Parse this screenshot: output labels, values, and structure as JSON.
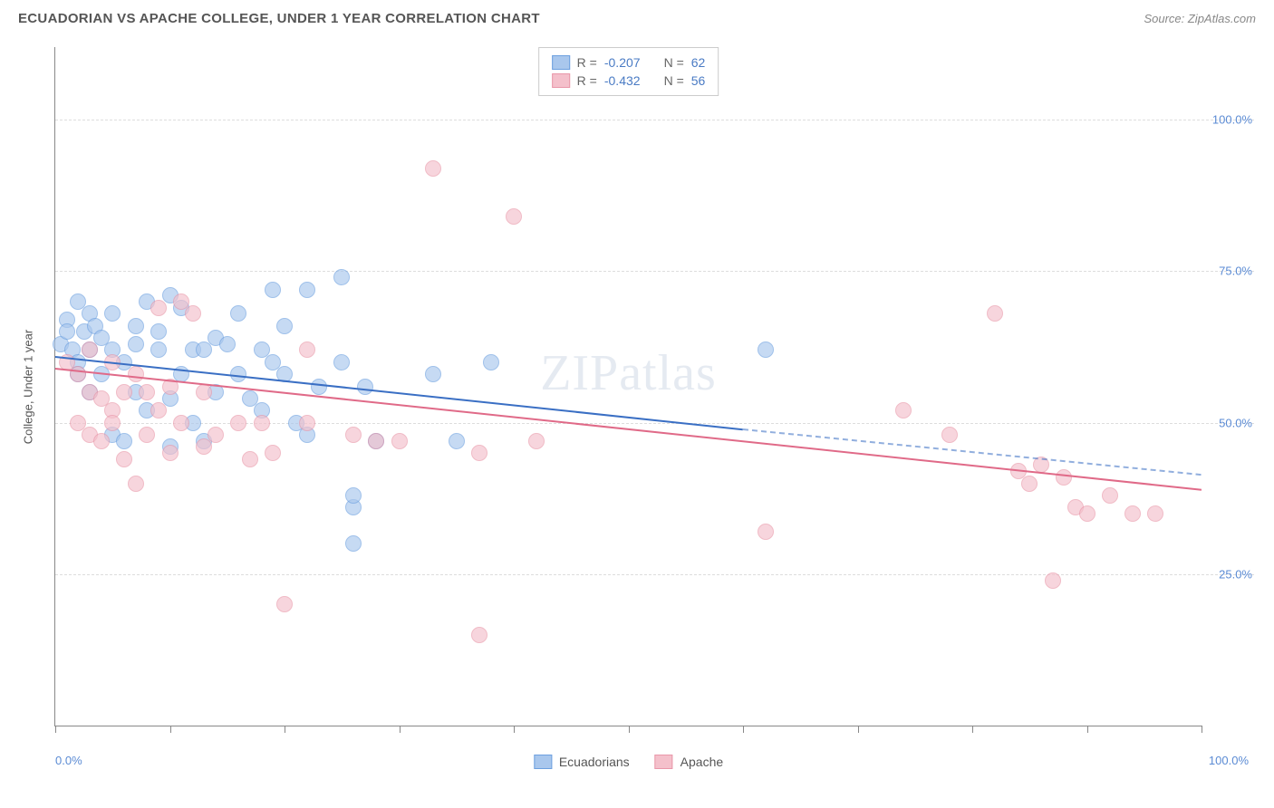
{
  "header": {
    "title": "ECUADORIAN VS APACHE COLLEGE, UNDER 1 YEAR CORRELATION CHART",
    "source_prefix": "Source: ",
    "source": "ZipAtlas.com"
  },
  "chart": {
    "type": "scatter",
    "ylabel": "College, Under 1 year",
    "watermark": "ZIPatlas",
    "xlim": [
      0,
      100
    ],
    "ylim": [
      0,
      112
    ],
    "x_axis": {
      "min_label": "0.0%",
      "max_label": "100.0%",
      "tick_positions_pct": [
        0,
        10,
        20,
        30,
        40,
        50,
        60,
        70,
        80,
        90,
        100
      ]
    },
    "y_gridlines": [
      {
        "value": 25,
        "label": "25.0%"
      },
      {
        "value": 50,
        "label": "50.0%"
      },
      {
        "value": 75,
        "label": "75.0%"
      },
      {
        "value": 100,
        "label": "100.0%"
      }
    ],
    "series": [
      {
        "name": "Ecuadorians",
        "fill": "#a9c7ed",
        "stroke": "#6da0e0",
        "line_color": "#3a6fc4",
        "r": -0.207,
        "n": 62,
        "trend": {
          "x1": 0,
          "y1": 61,
          "x2": 60,
          "y2": 49,
          "dash_x2": 100,
          "dash_y2": 41.5
        },
        "points": [
          [
            0.5,
            63
          ],
          [
            1,
            67
          ],
          [
            1,
            65
          ],
          [
            1.5,
            62
          ],
          [
            2,
            70
          ],
          [
            2,
            60
          ],
          [
            2,
            58
          ],
          [
            2.5,
            65
          ],
          [
            3,
            68
          ],
          [
            3,
            55
          ],
          [
            3,
            62
          ],
          [
            3.5,
            66
          ],
          [
            4,
            58
          ],
          [
            4,
            64
          ],
          [
            5,
            68
          ],
          [
            5,
            62
          ],
          [
            5,
            48
          ],
          [
            6,
            60
          ],
          [
            6,
            47
          ],
          [
            7,
            66
          ],
          [
            7,
            55
          ],
          [
            7,
            63
          ],
          [
            8,
            70
          ],
          [
            8,
            52
          ],
          [
            9,
            62
          ],
          [
            9,
            65
          ],
          [
            10,
            71
          ],
          [
            10,
            54
          ],
          [
            10,
            46
          ],
          [
            11,
            69
          ],
          [
            11,
            58
          ],
          [
            12,
            62
          ],
          [
            12,
            50
          ],
          [
            13,
            62
          ],
          [
            13,
            47
          ],
          [
            14,
            64
          ],
          [
            14,
            55
          ],
          [
            15,
            63
          ],
          [
            16,
            58
          ],
          [
            16,
            68
          ],
          [
            17,
            54
          ],
          [
            18,
            62
          ],
          [
            18,
            52
          ],
          [
            19,
            72
          ],
          [
            19,
            60
          ],
          [
            20,
            58
          ],
          [
            20,
            66
          ],
          [
            21,
            50
          ],
          [
            22,
            72
          ],
          [
            22,
            48
          ],
          [
            23,
            56
          ],
          [
            25,
            74
          ],
          [
            25,
            60
          ],
          [
            26,
            36
          ],
          [
            26,
            38
          ],
          [
            26,
            30
          ],
          [
            27,
            56
          ],
          [
            28,
            47
          ],
          [
            33,
            58
          ],
          [
            35,
            47
          ],
          [
            38,
            60
          ],
          [
            62,
            62
          ]
        ]
      },
      {
        "name": "Apache",
        "fill": "#f4c0cb",
        "stroke": "#e997a9",
        "line_color": "#e06a88",
        "r": -0.432,
        "n": 56,
        "trend": {
          "x1": 0,
          "y1": 59,
          "x2": 100,
          "y2": 39
        },
        "points": [
          [
            1,
            60
          ],
          [
            2,
            58
          ],
          [
            2,
            50
          ],
          [
            3,
            62
          ],
          [
            3,
            55
          ],
          [
            3,
            48
          ],
          [
            4,
            54
          ],
          [
            4,
            47
          ],
          [
            5,
            60
          ],
          [
            5,
            52
          ],
          [
            5,
            50
          ],
          [
            6,
            55
          ],
          [
            6,
            44
          ],
          [
            7,
            58
          ],
          [
            7,
            40
          ],
          [
            8,
            55
          ],
          [
            8,
            48
          ],
          [
            9,
            69
          ],
          [
            9,
            52
          ],
          [
            10,
            56
          ],
          [
            10,
            45
          ],
          [
            11,
            70
          ],
          [
            11,
            50
          ],
          [
            12,
            68
          ],
          [
            13,
            55
          ],
          [
            13,
            46
          ],
          [
            14,
            48
          ],
          [
            16,
            50
          ],
          [
            17,
            44
          ],
          [
            18,
            50
          ],
          [
            19,
            45
          ],
          [
            20,
            20
          ],
          [
            22,
            62
          ],
          [
            22,
            50
          ],
          [
            26,
            48
          ],
          [
            28,
            47
          ],
          [
            30,
            47
          ],
          [
            33,
            92
          ],
          [
            37,
            45
          ],
          [
            37,
            15
          ],
          [
            40,
            84
          ],
          [
            42,
            47
          ],
          [
            62,
            32
          ],
          [
            74,
            52
          ],
          [
            78,
            48
          ],
          [
            82,
            68
          ],
          [
            84,
            42
          ],
          [
            85,
            40
          ],
          [
            86,
            43
          ],
          [
            87,
            24
          ],
          [
            88,
            41
          ],
          [
            89,
            36
          ],
          [
            90,
            35
          ],
          [
            92,
            38
          ],
          [
            94,
            35
          ],
          [
            96,
            35
          ]
        ]
      }
    ],
    "legend_top": {
      "r_label": "R =",
      "n_label": "N ="
    }
  }
}
